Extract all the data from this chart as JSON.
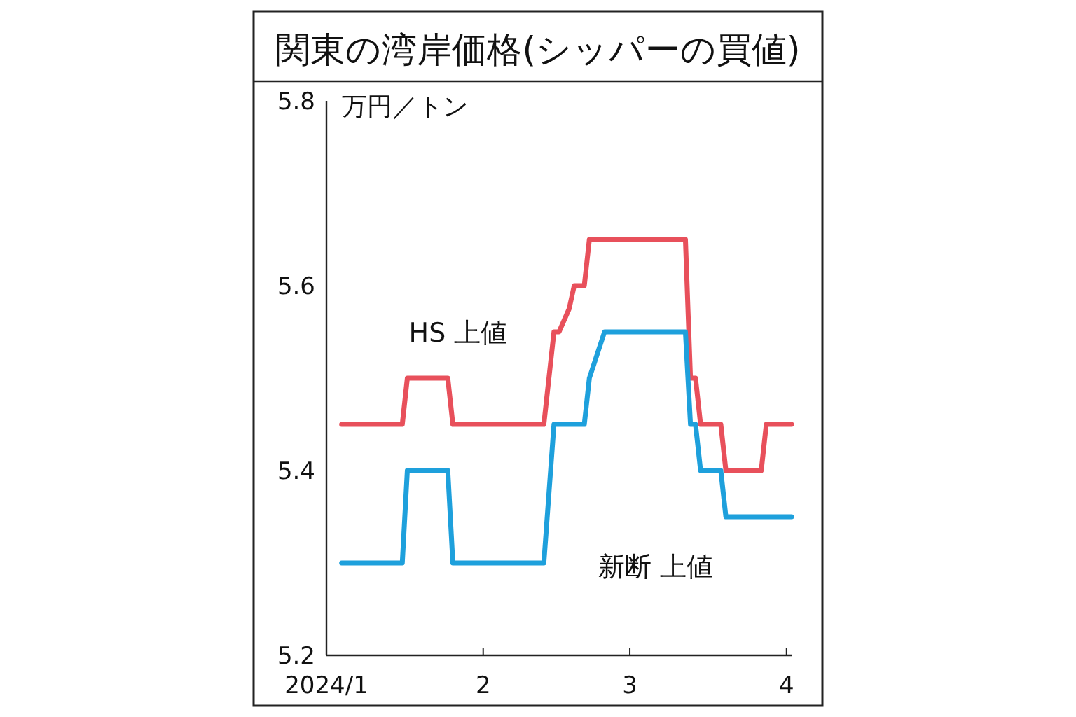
{
  "chart_data": {
    "type": "line",
    "title": "関東の湾岸価格(シッパーの買値)",
    "ylabel": "万円／トン",
    "xlim": [
      "2024-01-01",
      "2024-04-02"
    ],
    "xticks": [
      {
        "value": "2024-01-01",
        "label": "2024/1"
      },
      {
        "value": "2024-02-01",
        "label": "2"
      },
      {
        "value": "2024-03-01",
        "label": "3"
      },
      {
        "value": "2024-04-01",
        "label": "4"
      }
    ],
    "ylim": [
      5.2,
      5.8
    ],
    "yticks": [
      5.2,
      5.4,
      5.6,
      5.8
    ],
    "series": [
      {
        "name": "HS 上値",
        "color": "#e8505b",
        "x": [
          "2024-01-04",
          "2024-01-16",
          "2024-01-17",
          "2024-01-25",
          "2024-01-26",
          "2024-02-13",
          "2024-02-15",
          "2024-02-16",
          "2024-02-18",
          "2024-02-19",
          "2024-02-21",
          "2024-02-22",
          "2024-03-12",
          "2024-03-13",
          "2024-03-14",
          "2024-03-15",
          "2024-03-19",
          "2024-03-20",
          "2024-03-27",
          "2024-03-28",
          "2024-04-02"
        ],
        "values": [
          5.45,
          5.45,
          5.5,
          5.5,
          5.45,
          5.45,
          5.55,
          5.55,
          5.575,
          5.6,
          5.6,
          5.65,
          5.65,
          5.5,
          5.5,
          5.45,
          5.45,
          5.4,
          5.4,
          5.45,
          5.45
        ]
      },
      {
        "name": "新断 上値",
        "color": "#1ea0dc",
        "x": [
          "2024-01-04",
          "2024-01-16",
          "2024-01-17",
          "2024-01-25",
          "2024-01-26",
          "2024-02-13",
          "2024-02-15",
          "2024-02-21",
          "2024-02-22",
          "2024-02-25",
          "2024-03-12",
          "2024-03-13",
          "2024-03-14",
          "2024-03-15",
          "2024-03-19",
          "2024-03-20",
          "2024-04-02"
        ],
        "values": [
          5.3,
          5.3,
          5.4,
          5.4,
          5.3,
          5.3,
          5.45,
          5.45,
          5.5,
          5.55,
          5.55,
          5.45,
          5.45,
          5.4,
          5.4,
          5.35,
          5.35
        ]
      }
    ]
  }
}
